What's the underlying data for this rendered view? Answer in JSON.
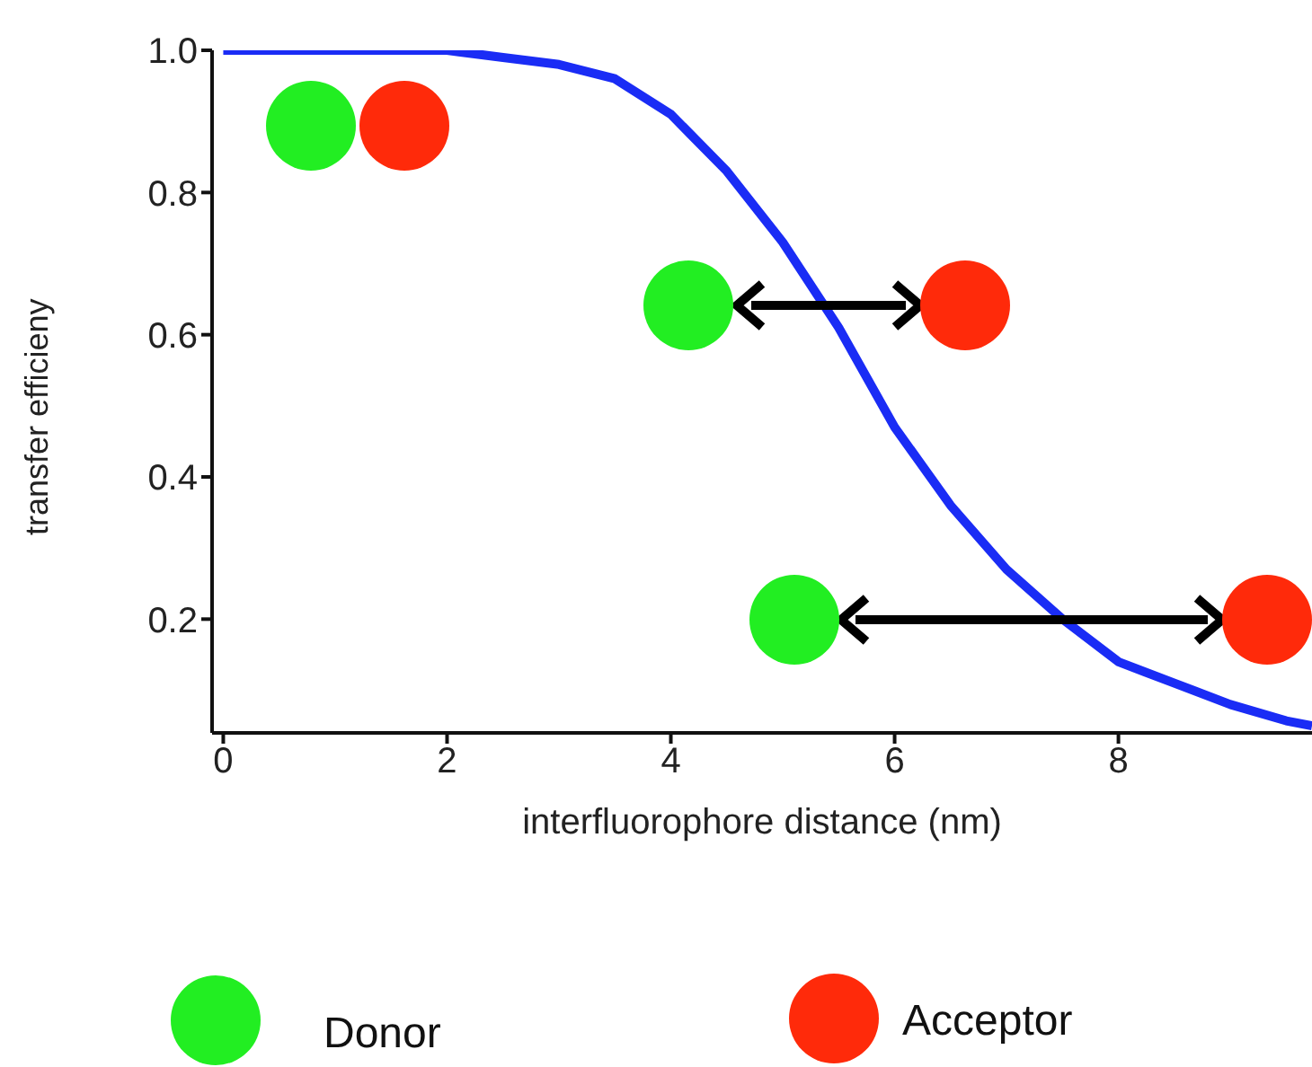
{
  "chart_data": {
    "type": "line",
    "xlabel": "interfluorophore distance (nm)",
    "ylabel": "transfer efficieny",
    "xlim": [
      -0.1,
      9.73
    ],
    "xticks": [
      0,
      2,
      4,
      6,
      8
    ],
    "ylim": [
      0.04,
      1.0
    ],
    "yticks": [
      0.2,
      0.4,
      0.6,
      0.8,
      {
        "value": 1.0,
        "label": "1.0"
      }
    ],
    "marker": "none",
    "line_style": "solid",
    "annotations": [
      "Donor",
      "Acceptor"
    ],
    "series": [
      {
        "color": "#1a2cf5",
        "x": [
          0,
          1,
          2,
          2.5,
          3,
          3.5,
          4,
          4.5,
          5,
          5.5,
          6,
          6.5,
          7,
          7.5,
          8,
          8.5,
          9,
          9.5,
          9.73
        ],
        "values": [
          1.0,
          1.0,
          1.0,
          0.99,
          0.98,
          0.96,
          0.91,
          0.83,
          0.73,
          0.61,
          0.47,
          0.36,
          0.27,
          0.2,
          0.14,
          0.11,
          0.08,
          0.057,
          0.05
        ]
      }
    ]
  }
}
